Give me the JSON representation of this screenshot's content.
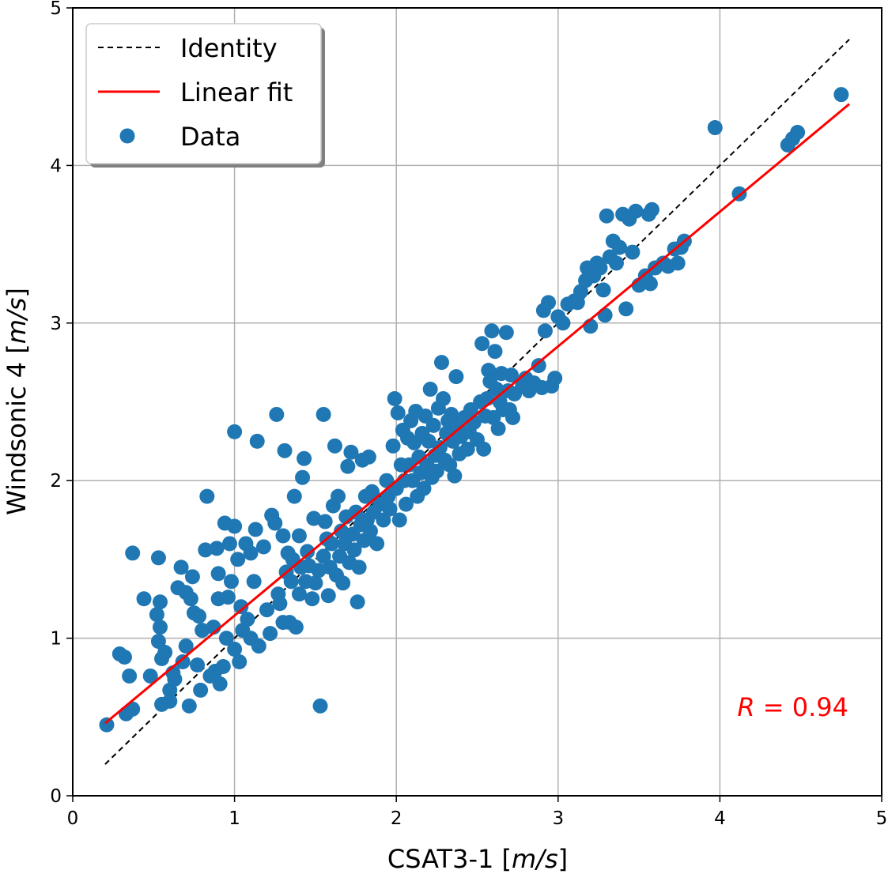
{
  "chart_data": {
    "type": "scatter",
    "xlabel_plain": "CSAT3-1 [",
    "xlabel_unit": "m/s",
    "xlabel_close": "]",
    "ylabel_plain": "Windsonic 4 [",
    "ylabel_unit": "m/s",
    "ylabel_close": "]",
    "xlim": [
      0,
      5
    ],
    "ylim": [
      0,
      5
    ],
    "x_ticks": [
      "0",
      "1",
      "2",
      "3",
      "4",
      "5"
    ],
    "y_ticks": [
      "0",
      "1",
      "2",
      "3",
      "4",
      "5"
    ],
    "grid": true,
    "legend_position": "upper-left",
    "legend": [
      {
        "label": "Identity",
        "style": "dashed-line",
        "color": "#000000"
      },
      {
        "label": "Linear fit",
        "style": "solid-line",
        "color": "#ff0000"
      },
      {
        "label": "Data",
        "style": "marker",
        "color": "#1f77b4"
      }
    ],
    "identity_line": {
      "x": [
        0.2,
        4.8
      ],
      "y": [
        0.2,
        4.8
      ]
    },
    "fit_line": {
      "x": [
        0.2,
        4.8
      ],
      "y": [
        0.46,
        4.39
      ]
    },
    "annotation": {
      "italic": "R",
      "rest": " = 0.94",
      "color": "#ff0000"
    },
    "series": [
      {
        "name": "Data",
        "color": "#1f77b4",
        "points": [
          [
            0.21,
            0.45
          ],
          [
            0.29,
            0.9
          ],
          [
            0.32,
            0.88
          ],
          [
            0.33,
            0.52
          ],
          [
            0.35,
            0.76
          ],
          [
            0.37,
            0.55
          ],
          [
            0.37,
            1.54
          ],
          [
            0.44,
            1.25
          ],
          [
            0.48,
            0.76
          ],
          [
            0.52,
            1.15
          ],
          [
            0.53,
            0.98
          ],
          [
            0.53,
            1.51
          ],
          [
            0.54,
            1.07
          ],
          [
            0.54,
            1.23
          ],
          [
            0.55,
            0.87
          ],
          [
            0.55,
            0.58
          ],
          [
            0.57,
            0.91
          ],
          [
            0.6,
            0.67
          ],
          [
            0.6,
            0.6
          ],
          [
            0.62,
            0.78
          ],
          [
            0.63,
            0.74
          ],
          [
            0.65,
            1.32
          ],
          [
            0.67,
            1.45
          ],
          [
            0.68,
            0.85
          ],
          [
            0.7,
            1.29
          ],
          [
            0.7,
            0.95
          ],
          [
            0.72,
            0.57
          ],
          [
            0.73,
            1.25
          ],
          [
            0.74,
            1.39
          ],
          [
            0.75,
            1.16
          ],
          [
            0.77,
            0.83
          ],
          [
            0.78,
            1.14
          ],
          [
            0.79,
            0.67
          ],
          [
            0.8,
            1.05
          ],
          [
            0.82,
            1.56
          ],
          [
            0.83,
            1.9
          ],
          [
            0.85,
            0.76
          ],
          [
            0.87,
            1.07
          ],
          [
            0.88,
            0.79
          ],
          [
            0.89,
            1.57
          ],
          [
            0.9,
            1.25
          ],
          [
            0.9,
            1.41
          ],
          [
            0.91,
            0.71
          ],
          [
            0.93,
            0.82
          ],
          [
            0.94,
            1.73
          ],
          [
            0.95,
            1.0
          ],
          [
            0.96,
            1.26
          ],
          [
            0.97,
            1.6
          ],
          [
            0.98,
            1.36
          ],
          [
            1.0,
            2.31
          ],
          [
            1.0,
            1.71
          ],
          [
            1.0,
            0.93
          ],
          [
            1.02,
            1.5
          ],
          [
            1.03,
            0.85
          ],
          [
            1.04,
            1.2
          ],
          [
            1.05,
            1.05
          ],
          [
            1.07,
            1.6
          ],
          [
            1.08,
            1.12
          ],
          [
            1.1,
            1.54
          ],
          [
            1.1,
            1.0
          ],
          [
            1.12,
            1.36
          ],
          [
            1.13,
            1.69
          ],
          [
            1.14,
            2.25
          ],
          [
            1.15,
            0.95
          ],
          [
            1.18,
            1.58
          ],
          [
            1.2,
            1.18
          ],
          [
            1.22,
            1.03
          ],
          [
            1.23,
            1.78
          ],
          [
            1.25,
            1.73
          ],
          [
            1.26,
            2.42
          ],
          [
            1.27,
            1.28
          ],
          [
            1.28,
            1.22
          ],
          [
            1.3,
            1.1
          ],
          [
            1.3,
            1.65
          ],
          [
            1.31,
            2.19
          ],
          [
            1.32,
            1.42
          ],
          [
            1.33,
            1.54
          ],
          [
            1.34,
            1.1
          ],
          [
            1.35,
            1.36
          ],
          [
            1.36,
            1.5
          ],
          [
            1.37,
            1.9
          ],
          [
            1.38,
            1.07
          ],
          [
            1.4,
            1.65
          ],
          [
            1.4,
            1.28
          ],
          [
            1.41,
            1.45
          ],
          [
            1.42,
            2.02
          ],
          [
            1.43,
            2.14
          ],
          [
            1.44,
            1.36
          ],
          [
            1.45,
            1.55
          ],
          [
            1.46,
            1.46
          ],
          [
            1.48,
            1.25
          ],
          [
            1.49,
            1.76
          ],
          [
            1.5,
            1.35
          ],
          [
            1.52,
            1.43
          ],
          [
            1.53,
            0.57
          ],
          [
            1.55,
            2.42
          ],
          [
            1.55,
            1.52
          ],
          [
            1.56,
            1.74
          ],
          [
            1.57,
            1.63
          ],
          [
            1.58,
            1.27
          ],
          [
            1.59,
            1.45
          ],
          [
            1.6,
            1.6
          ],
          [
            1.61,
            1.84
          ],
          [
            1.62,
            2.22
          ],
          [
            1.63,
            1.4
          ],
          [
            1.64,
            1.9
          ],
          [
            1.65,
            1.52
          ],
          [
            1.66,
            1.68
          ],
          [
            1.67,
            1.35
          ],
          [
            1.68,
            1.6
          ],
          [
            1.69,
            1.77
          ],
          [
            1.7,
            2.09
          ],
          [
            1.71,
            1.48
          ],
          [
            1.72,
            2.18
          ],
          [
            1.73,
            1.66
          ],
          [
            1.74,
            1.56
          ],
          [
            1.75,
            1.8
          ],
          [
            1.76,
            1.23
          ],
          [
            1.77,
            1.45
          ],
          [
            1.78,
            1.72
          ],
          [
            1.79,
            2.13
          ],
          [
            1.8,
            1.62
          ],
          [
            1.81,
            1.9
          ],
          [
            1.82,
            1.75
          ],
          [
            1.83,
            2.15
          ],
          [
            1.84,
            1.68
          ],
          [
            1.85,
            1.93
          ],
          [
            1.86,
            1.8
          ],
          [
            1.88,
            1.6
          ],
          [
            1.9,
            1.85
          ],
          [
            1.92,
            1.75
          ],
          [
            1.94,
            2.0
          ],
          [
            1.95,
            1.9
          ],
          [
            1.96,
            1.82
          ],
          [
            1.98,
            2.22
          ],
          [
            1.99,
            2.52
          ],
          [
            2.0,
            1.95
          ],
          [
            2.01,
            2.43
          ],
          [
            2.02,
            1.75
          ],
          [
            2.03,
            2.1
          ],
          [
            2.04,
            2.32
          ],
          [
            2.05,
            2.0
          ],
          [
            2.06,
            1.85
          ],
          [
            2.07,
            2.27
          ],
          [
            2.08,
            2.1
          ],
          [
            2.09,
            2.38
          ],
          [
            2.1,
            2.0
          ],
          [
            2.11,
            2.24
          ],
          [
            2.12,
            2.44
          ],
          [
            2.13,
            1.9
          ],
          [
            2.14,
            2.15
          ],
          [
            2.15,
            2.05
          ],
          [
            2.16,
            2.3
          ],
          [
            2.17,
            1.95
          ],
          [
            2.18,
            2.41
          ],
          [
            2.19,
            2.1
          ],
          [
            2.2,
            2.25
          ],
          [
            2.21,
            2.58
          ],
          [
            2.22,
            2.02
          ],
          [
            2.23,
            2.35
          ],
          [
            2.24,
            2.16
          ],
          [
            2.25,
            2.06
          ],
          [
            2.26,
            2.46
          ],
          [
            2.27,
            2.21
          ],
          [
            2.28,
            2.75
          ],
          [
            2.29,
            2.52
          ],
          [
            2.3,
            2.13
          ],
          [
            2.31,
            2.3
          ],
          [
            2.32,
            2.38
          ],
          [
            2.33,
            2.1
          ],
          [
            2.34,
            2.42
          ],
          [
            2.35,
            2.25
          ],
          [
            2.36,
            2.03
          ],
          [
            2.37,
            2.66
          ],
          [
            2.38,
            2.35
          ],
          [
            2.39,
            2.17
          ],
          [
            2.4,
            2.28
          ],
          [
            2.42,
            2.4
          ],
          [
            2.44,
            2.2
          ],
          [
            2.45,
            2.31
          ],
          [
            2.46,
            2.45
          ],
          [
            2.48,
            2.37
          ],
          [
            2.5,
            2.26
          ],
          [
            2.52,
            2.5
          ],
          [
            2.53,
            2.87
          ],
          [
            2.54,
            2.2
          ],
          [
            2.55,
            2.41
          ],
          [
            2.56,
            2.52
          ],
          [
            2.57,
            2.7
          ],
          [
            2.58,
            2.63
          ],
          [
            2.59,
            2.95
          ],
          [
            2.6,
            2.4
          ],
          [
            2.61,
            2.82
          ],
          [
            2.62,
            2.58
          ],
          [
            2.63,
            2.33
          ],
          [
            2.64,
            2.5
          ],
          [
            2.65,
            2.68
          ],
          [
            2.66,
            2.45
          ],
          [
            2.68,
            2.94
          ],
          [
            2.69,
            2.57
          ],
          [
            2.7,
            2.45
          ],
          [
            2.71,
            2.67
          ],
          [
            2.72,
            2.4
          ],
          [
            2.73,
            2.55
          ],
          [
            2.78,
            2.6
          ],
          [
            2.8,
            2.65
          ],
          [
            2.82,
            2.57
          ],
          [
            2.85,
            2.62
          ],
          [
            2.88,
            2.73
          ],
          [
            2.9,
            2.59
          ],
          [
            2.91,
            3.08
          ],
          [
            2.92,
            2.95
          ],
          [
            2.94,
            3.13
          ],
          [
            2.96,
            2.6
          ],
          [
            2.98,
            2.65
          ],
          [
            3.0,
            3.04
          ],
          [
            3.03,
            3.0
          ],
          [
            3.06,
            3.12
          ],
          [
            3.1,
            3.14
          ],
          [
            3.12,
            3.13
          ],
          [
            3.14,
            3.2
          ],
          [
            3.17,
            3.27
          ],
          [
            3.18,
            3.35
          ],
          [
            3.2,
            2.98
          ],
          [
            3.22,
            3.3
          ],
          [
            3.24,
            3.38
          ],
          [
            3.26,
            3.35
          ],
          [
            3.28,
            3.21
          ],
          [
            3.29,
            3.05
          ],
          [
            3.3,
            3.68
          ],
          [
            3.32,
            3.42
          ],
          [
            3.34,
            3.52
          ],
          [
            3.36,
            3.38
          ],
          [
            3.38,
            3.48
          ],
          [
            3.4,
            3.69
          ],
          [
            3.42,
            3.09
          ],
          [
            3.44,
            3.66
          ],
          [
            3.46,
            3.45
          ],
          [
            3.48,
            3.71
          ],
          [
            3.5,
            3.24
          ],
          [
            3.54,
            3.3
          ],
          [
            3.56,
            3.69
          ],
          [
            3.57,
            3.25
          ],
          [
            3.58,
            3.72
          ],
          [
            3.6,
            3.35
          ],
          [
            3.65,
            3.38
          ],
          [
            3.68,
            3.36
          ],
          [
            3.72,
            3.47
          ],
          [
            3.74,
            3.38
          ],
          [
            3.76,
            3.48
          ],
          [
            3.78,
            3.52
          ],
          [
            3.97,
            4.24
          ],
          [
            4.12,
            3.82
          ],
          [
            4.42,
            4.13
          ],
          [
            4.45,
            4.17
          ],
          [
            4.48,
            4.21
          ],
          [
            4.75,
            4.45
          ]
        ]
      }
    ]
  }
}
